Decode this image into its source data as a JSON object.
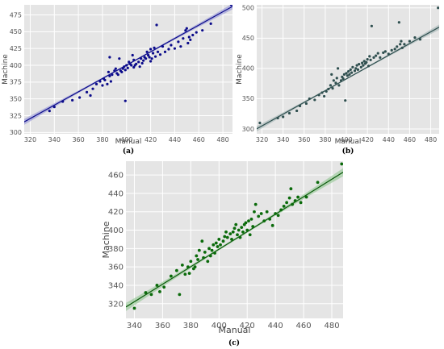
{
  "chart_data": [
    {
      "id": "a",
      "type": "scatter",
      "caption": "(a)",
      "xlabel": "Manual",
      "ylabel": "Machine",
      "xlim": [
        315,
        488
      ],
      "ylim": [
        298,
        490
      ],
      "xticks": [
        320,
        340,
        360,
        380,
        400,
        420,
        440,
        460,
        480
      ],
      "yticks": [
        300,
        325,
        350,
        375,
        400,
        425,
        450,
        475
      ],
      "grid": true,
      "colors": {
        "points": "#0b0b8a",
        "line": "#0b0b8a",
        "band": "#8a8ad6",
        "background": "#e5e5e5",
        "gridline": "#ffffff"
      },
      "fit": {
        "x": [
          315,
          488
        ],
        "y": [
          315.8,
          487.6
        ]
      },
      "points": [
        [
          487,
          490
        ],
        [
          336,
          332
        ],
        [
          340,
          338
        ],
        [
          347,
          346
        ],
        [
          355,
          348
        ],
        [
          361,
          352
        ],
        [
          367,
          360
        ],
        [
          370,
          355
        ],
        [
          372,
          365
        ],
        [
          375,
          372
        ],
        [
          378,
          376
        ],
        [
          380,
          370
        ],
        [
          381,
          380
        ],
        [
          382,
          378
        ],
        [
          384,
          372
        ],
        [
          385,
          390
        ],
        [
          386,
          384
        ],
        [
          386,
          412
        ],
        [
          387,
          376
        ],
        [
          388,
          386
        ],
        [
          390,
          392
        ],
        [
          391,
          395
        ],
        [
          392,
          388
        ],
        [
          393,
          386
        ],
        [
          394,
          410
        ],
        [
          395,
          392
        ],
        [
          396,
          390
        ],
        [
          397,
          395
        ],
        [
          398,
          398
        ],
        [
          399,
          393
        ],
        [
          399,
          347
        ],
        [
          400,
          400
        ],
        [
          401,
          396
        ],
        [
          402,
          405
        ],
        [
          403,
          402
        ],
        [
          404,
          400
        ],
        [
          405,
          415
        ],
        [
          406,
          408
        ],
        [
          406,
          397
        ],
        [
          407,
          400
        ],
        [
          408,
          402
        ],
        [
          410,
          405
        ],
        [
          411,
          398
        ],
        [
          412,
          410
        ],
        [
          413,
          403
        ],
        [
          414,
          407
        ],
        [
          415,
          412
        ],
        [
          416,
          410
        ],
        [
          417,
          420
        ],
        [
          418,
          415
        ],
        [
          419,
          412
        ],
        [
          420,
          424
        ],
        [
          420,
          406
        ],
        [
          421,
          410
        ],
        [
          422,
          418
        ],
        [
          423,
          426
        ],
        [
          424,
          413
        ],
        [
          425,
          460
        ],
        [
          426,
          420
        ],
        [
          428,
          416
        ],
        [
          430,
          428
        ],
        [
          432,
          420
        ],
        [
          435,
          424
        ],
        [
          437,
          430
        ],
        [
          440,
          425
        ],
        [
          443,
          435
        ],
        [
          445,
          428
        ],
        [
          447,
          440
        ],
        [
          449,
          452
        ],
        [
          450,
          455
        ],
        [
          451,
          433
        ],
        [
          452,
          442
        ],
        [
          453,
          438
        ],
        [
          455,
          445
        ],
        [
          458,
          449
        ],
        [
          463,
          452
        ],
        [
          470,
          462
        ]
      ]
    },
    {
      "id": "b",
      "type": "scatter",
      "caption": "(b)",
      "xlabel": "Manual",
      "ylabel": "Machine",
      "xlim": [
        315,
        488
      ],
      "ylim": [
        292,
        505
      ],
      "xticks": [
        320,
        340,
        360,
        380,
        400,
        420,
        440,
        460,
        480
      ],
      "yticks": [
        300,
        350,
        400,
        450,
        500
      ],
      "grid": true,
      "colors": {
        "points": "#2f4f4f",
        "line": "#2f4f4f",
        "band": "#9aaeae",
        "background": "#e5e5e5",
        "gridline": "#ffffff"
      },
      "fit": {
        "x": [
          315,
          488
        ],
        "y": [
          300.2,
          468.2
        ]
      },
      "points": [
        [
          487,
          500
        ],
        [
          318,
          310
        ],
        [
          335,
          318
        ],
        [
          340,
          320
        ],
        [
          346,
          326
        ],
        [
          353,
          330
        ],
        [
          356,
          338
        ],
        [
          362,
          342
        ],
        [
          365,
          350
        ],
        [
          370,
          348
        ],
        [
          374,
          356
        ],
        [
          377,
          360
        ],
        [
          379,
          354
        ],
        [
          381,
          362
        ],
        [
          383,
          366
        ],
        [
          385,
          372
        ],
        [
          386,
          390
        ],
        [
          387,
          367
        ],
        [
          388,
          380
        ],
        [
          390,
          376
        ],
        [
          391,
          384
        ],
        [
          392,
          400
        ],
        [
          393,
          372
        ],
        [
          395,
          380
        ],
        [
          396,
          386
        ],
        [
          397,
          383
        ],
        [
          398,
          390
        ],
        [
          399,
          347
        ],
        [
          400,
          392
        ],
        [
          401,
          388
        ],
        [
          402,
          395
        ],
        [
          403,
          390
        ],
        [
          404,
          398
        ],
        [
          405,
          393
        ],
        [
          406,
          402
        ],
        [
          408,
          396
        ],
        [
          409,
          400
        ],
        [
          410,
          405
        ],
        [
          411,
          398
        ],
        [
          412,
          407
        ],
        [
          414,
          402
        ],
        [
          415,
          409
        ],
        [
          416,
          405
        ],
        [
          417,
          412
        ],
        [
          418,
          408
        ],
        [
          419,
          410
        ],
        [
          420,
          415
        ],
        [
          421,
          404
        ],
        [
          422,
          420
        ],
        [
          423,
          414
        ],
        [
          424,
          470
        ],
        [
          426,
          418
        ],
        [
          428,
          421
        ],
        [
          430,
          425
        ],
        [
          432,
          418
        ],
        [
          435,
          426
        ],
        [
          437,
          428
        ],
        [
          440,
          424
        ],
        [
          443,
          430
        ],
        [
          446,
          432
        ],
        [
          448,
          436
        ],
        [
          450,
          476
        ],
        [
          451,
          440
        ],
        [
          452,
          445
        ],
        [
          453,
          434
        ],
        [
          455,
          440
        ],
        [
          460,
          445
        ],
        [
          465,
          451
        ],
        [
          470,
          448
        ]
      ]
    },
    {
      "id": "c",
      "type": "scatter",
      "caption": "(c)",
      "xlabel": "Manual",
      "ylabel": "Machine",
      "xlim": [
        334,
        488
      ],
      "ylim": [
        304,
        475
      ],
      "xticks": [
        340,
        360,
        380,
        400,
        420,
        440,
        460,
        480
      ],
      "yticks": [
        320,
        340,
        360,
        380,
        400,
        420,
        440,
        460
      ],
      "grid": true,
      "colors": {
        "points": "#0a6a0a",
        "line": "#0a5a0a",
        "band": "#88c288",
        "background": "#e5e5e5",
        "gridline": "#ffffff"
      },
      "fit": {
        "x": [
          334,
          488
        ],
        "y": [
          316.4,
          463.0
        ]
      },
      "points": [
        [
          487,
          472
        ],
        [
          340,
          315
        ],
        [
          348,
          332
        ],
        [
          352,
          330
        ],
        [
          356,
          340
        ],
        [
          358,
          333
        ],
        [
          361,
          338
        ],
        [
          366,
          350
        ],
        [
          370,
          356
        ],
        [
          372,
          330
        ],
        [
          374,
          362
        ],
        [
          376,
          352
        ],
        [
          378,
          360
        ],
        [
          379,
          353
        ],
        [
          380,
          366
        ],
        [
          382,
          358
        ],
        [
          383,
          360
        ],
        [
          384,
          372
        ],
        [
          385,
          368
        ],
        [
          386,
          378
        ],
        [
          388,
          388
        ],
        [
          389,
          370
        ],
        [
          390,
          376
        ],
        [
          392,
          366
        ],
        [
          393,
          380
        ],
        [
          394,
          372
        ],
        [
          395,
          378
        ],
        [
          396,
          384
        ],
        [
          397,
          375
        ],
        [
          398,
          386
        ],
        [
          399,
          382
        ],
        [
          400,
          390
        ],
        [
          401,
          384
        ],
        [
          403,
          388
        ],
        [
          404,
          393
        ],
        [
          405,
          398
        ],
        [
          406,
          392
        ],
        [
          408,
          396
        ],
        [
          409,
          390
        ],
        [
          410,
          398
        ],
        [
          411,
          402
        ],
        [
          412,
          406
        ],
        [
          413,
          395
        ],
        [
          414,
          400
        ],
        [
          415,
          392
        ],
        [
          416,
          403
        ],
        [
          417,
          398
        ],
        [
          418,
          406
        ],
        [
          419,
          408
        ],
        [
          420,
          400
        ],
        [
          421,
          410
        ],
        [
          422,
          395
        ],
        [
          423,
          412
        ],
        [
          424,
          404
        ],
        [
          425,
          420
        ],
        [
          426,
          428
        ],
        [
          428,
          415
        ],
        [
          430,
          418
        ],
        [
          432,
          410
        ],
        [
          434,
          420
        ],
        [
          436,
          412
        ],
        [
          438,
          405
        ],
        [
          440,
          418
        ],
        [
          442,
          416
        ],
        [
          444,
          422
        ],
        [
          446,
          426
        ],
        [
          448,
          430
        ],
        [
          450,
          435
        ],
        [
          451,
          445
        ],
        [
          452,
          428
        ],
        [
          454,
          432
        ],
        [
          456,
          436
        ],
        [
          458,
          430
        ],
        [
          462,
          436
        ],
        [
          470,
          452
        ]
      ]
    }
  ]
}
